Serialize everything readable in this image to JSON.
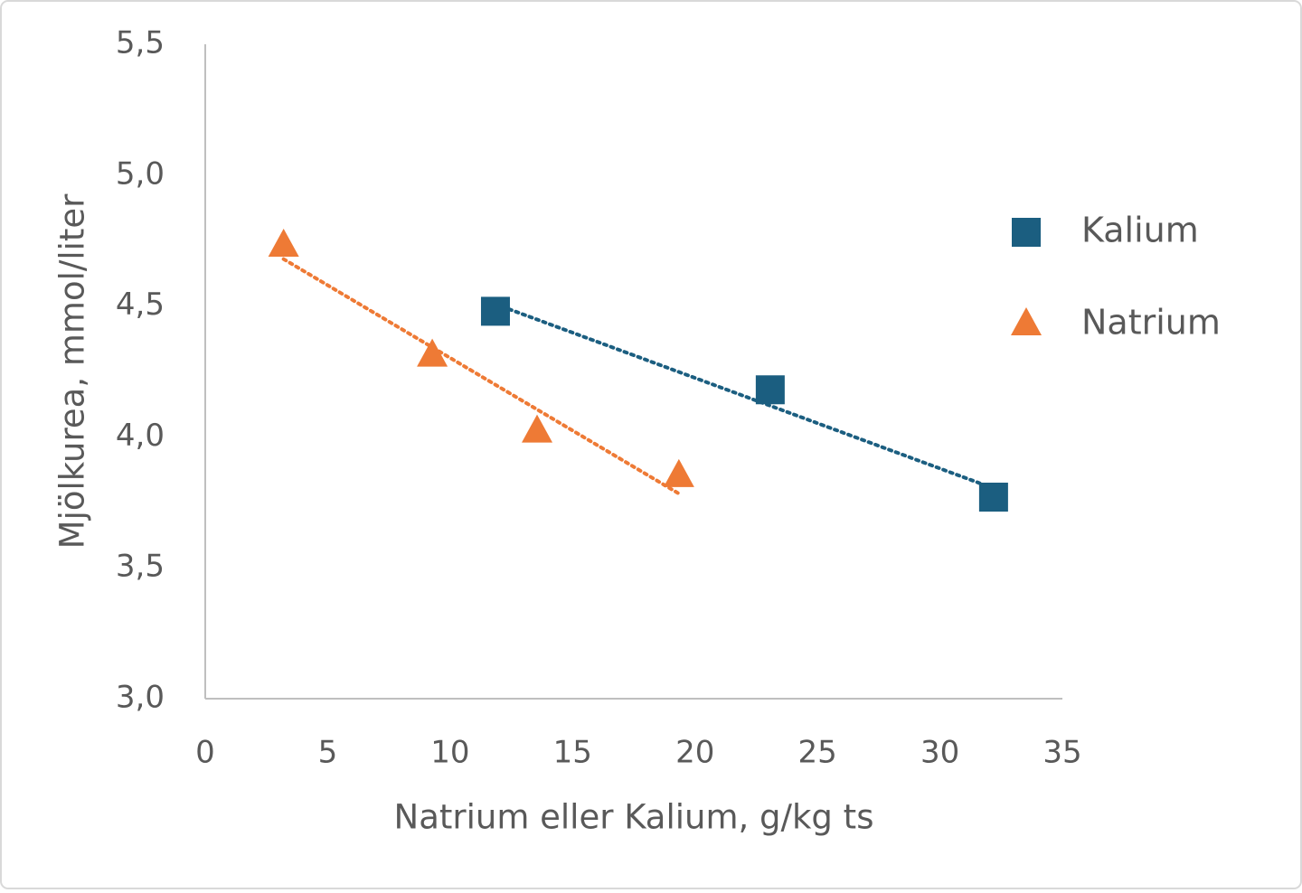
{
  "chart_data": {
    "type": "scatter",
    "x_label": "Natrium eller Kalium, g/kg ts",
    "y_label": "Mjölkurea, mmol/liter",
    "xlim": [
      0,
      35
    ],
    "xticks": [
      0,
      5,
      10,
      15,
      20,
      25,
      30,
      35
    ],
    "ylim": [
      3.0,
      5.5
    ],
    "yticks": [
      {
        "value": 3.0,
        "label": "3,0"
      },
      {
        "value": 3.5,
        "label": "3,5"
      },
      {
        "value": 4.0,
        "label": "4,0"
      },
      {
        "value": 4.5,
        "label": "4,5"
      },
      {
        "value": 5.0,
        "label": "5,0"
      },
      {
        "value": 5.5,
        "label": "5,5"
      }
    ],
    "trendline": true,
    "legend": "right",
    "series": [
      {
        "name": "Kalium",
        "color": "#1b5e80",
        "marker": "square",
        "x": [
          11.85,
          23.07,
          32.19
        ],
        "values": [
          4.48,
          4.18,
          3.77
        ]
      },
      {
        "name": "Natrium",
        "color": "#ee7a35",
        "marker": "triangle",
        "x": [
          3.2,
          9.27,
          13.55,
          19.34
        ],
        "values": [
          4.73,
          4.31,
          4.02,
          3.85
        ]
      }
    ]
  }
}
